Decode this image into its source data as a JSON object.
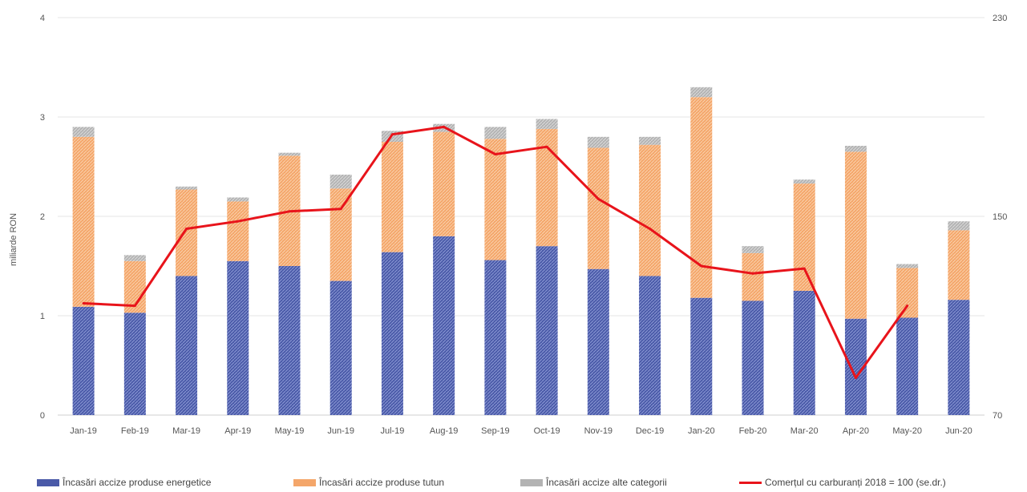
{
  "chart_data": {
    "type": "bar",
    "stacked": true,
    "categories": [
      "Jan-19",
      "Feb-19",
      "Mar-19",
      "Apr-19",
      "May-19",
      "Jun-19",
      "Jul-19",
      "Aug-19",
      "Sep-19",
      "Oct-19",
      "Nov-19",
      "Dec-19",
      "Jan-20",
      "Feb-20",
      "Mar-20",
      "Apr-20",
      "May-20",
      "Jun-20"
    ],
    "ylabel": "miliarde RON",
    "ylim": [
      0,
      4
    ],
    "y_ticks": [
      "0",
      "1",
      "2",
      "3",
      "4"
    ],
    "y2lim": [
      70,
      230
    ],
    "y2_ticks": [
      "70",
      "150",
      "230"
    ],
    "y2label": "",
    "grid": true,
    "legend_position": "bottom",
    "series": [
      {
        "name": "Încasări accize produse energetice",
        "color": "#4a5aa8",
        "axis": "left",
        "values": [
          1.09,
          1.03,
          1.4,
          1.55,
          1.5,
          1.35,
          1.64,
          1.8,
          1.56,
          1.7,
          1.47,
          1.4,
          1.18,
          1.15,
          1.25,
          0.97,
          0.98,
          1.16
        ]
      },
      {
        "name": "Încasări accize produse tutun",
        "color": "#f4a66a",
        "axis": "left",
        "values": [
          1.71,
          0.52,
          0.87,
          0.6,
          1.11,
          0.93,
          1.11,
          1.05,
          1.22,
          1.18,
          1.22,
          1.32,
          2.02,
          0.48,
          1.08,
          1.68,
          0.5,
          0.7
        ]
      },
      {
        "name": "Încasări accize alte categorii",
        "color": "#b3b3b3",
        "axis": "left",
        "values": [
          0.1,
          0.06,
          0.03,
          0.04,
          0.03,
          0.14,
          0.11,
          0.08,
          0.12,
          0.1,
          0.11,
          0.08,
          0.1,
          0.07,
          0.04,
          0.06,
          0.04,
          0.09
        ]
      },
      {
        "name": "Comerțul cu carburanți 2018 = 100 (se.dr.)",
        "color": "#e8141b",
        "axis": "right",
        "type": "line",
        "values": [
          115,
          114,
          145,
          148,
          152,
          153,
          183,
          186,
          175,
          178,
          157,
          145,
          130,
          127,
          129,
          85,
          114,
          null
        ]
      }
    ]
  }
}
